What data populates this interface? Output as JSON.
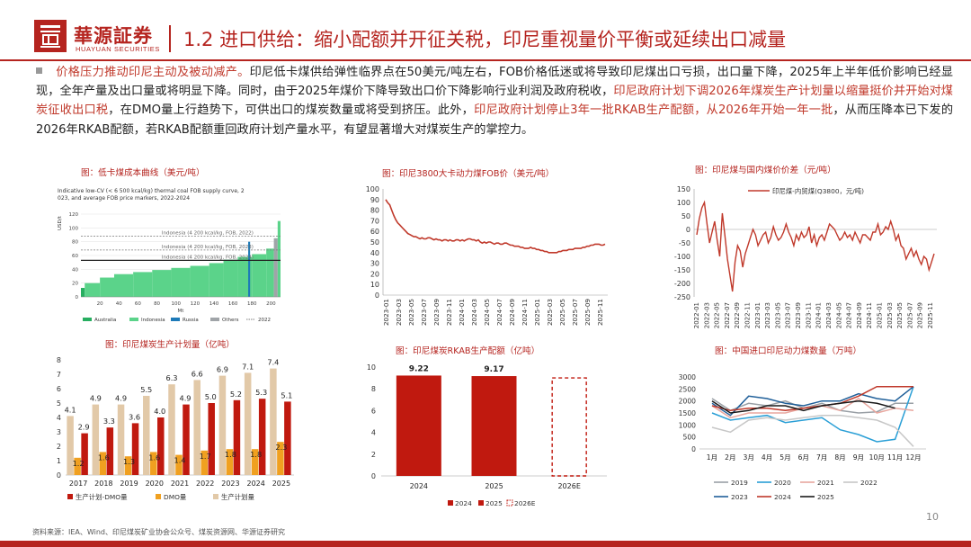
{
  "header": {
    "brand_cn": "華源証券",
    "brand_en": "HUAYUAN SECURITIES",
    "title": "1.2 进口供给：缩小配额并开征关税，印尼重视量价平衡或延续出口减量"
  },
  "paragraph": {
    "s1": "价格压力推动印尼主动及被动减产。",
    "s2": "印尼低卡煤供给弹性临界点在50美元/吨左右，FOB价格低迷或将导致印尼煤出口亏损，出口量下降，2025年上半年低价影响已经显现，全年产量及出口量或将明显下降。同时，由于2025年煤价下降导致出口价下降影响行业利润及政府税收，",
    "s3": "印尼政府计划下调2026年煤炭生产计划量以缩量挺价并开始对煤炭征收出口税",
    "s4": "，在DMO量上行趋势下，可供出口的煤炭数量或将受到挤压。此外，",
    "s5": "印尼政府计划停止3年一批RKAB生产配额，从2026年开始一年一批",
    "s6": "，从而压降本已下发的2026年RKAB配额，若RKAB配额重回政府计划产量水平，有望显著增大对煤炭生产的掌控力。"
  },
  "panels": {
    "p1_title": "图：低卡煤成本曲线（美元/吨）",
    "p2_title": "图：印尼3800大卡动力煤FOB价（美元/吨）",
    "p3_title": "图：印尼煤与国内煤价价差（元/吨）",
    "p4_title": "图：印尼煤炭生产计划量（亿吨）",
    "p5_title": "图：印尼煤炭RKAB生产配额（亿吨）",
    "p6_title": "图：中国进口印尼动力煤数量（万吨）"
  },
  "colors": {
    "brand": "#b5241f",
    "bar_red": "#c0190f",
    "bar_orange": "#f0a020",
    "bar_tan": "#e2c9a8",
    "line_red": "#c0392b"
  },
  "footer": {
    "source": "资料来源：IEA、Wind、印尼煤炭矿业协会公众号、煤炭资源网、华源证券研究",
    "page": "10"
  },
  "chart_data": [
    {
      "type": "area",
      "title": "Indicative low-CV (< 6 500 kcal/kg) thermal coal FOB supply curve, 2023, and average FOB price markers, 2022-2024",
      "xlabel": "Mt",
      "ylabel": "USD/t",
      "xlim": [
        0,
        210
      ],
      "ylim": [
        0,
        120
      ],
      "x_ticks": [
        "20",
        "40",
        "60",
        "80",
        "100",
        "120",
        "140",
        "160",
        "180",
        "200"
      ],
      "y_ticks": [
        "0",
        "20",
        "40",
        "60",
        "80",
        "100",
        "120"
      ],
      "markers": [
        {
          "label": "Indonesia (4 200 kcal/kg, FOB, 2022)",
          "value": 88
        },
        {
          "label": "Indonesia (4 200 kcal/kg, FOB, 2023)",
          "value": 68
        },
        {
          "label": "Indonesia (4 200 kcal/kg, FOB, 2024)",
          "value": 53
        }
      ],
      "segments": [
        {
          "country": "Australia",
          "x0": 0,
          "x1": 4,
          "y": 13
        },
        {
          "country": "Indonesia",
          "x0": 4,
          "x1": 20,
          "y": 20
        },
        {
          "country": "Indonesia",
          "x0": 20,
          "x1": 35,
          "y": 28
        },
        {
          "country": "Indonesia",
          "x0": 35,
          "x1": 55,
          "y": 33
        },
        {
          "country": "Indonesia",
          "x0": 55,
          "x1": 75,
          "y": 36
        },
        {
          "country": "Indonesia",
          "x0": 75,
          "x1": 95,
          "y": 39
        },
        {
          "country": "Indonesia",
          "x0": 95,
          "x1": 115,
          "y": 42
        },
        {
          "country": "Indonesia",
          "x0": 115,
          "x1": 135,
          "y": 45
        },
        {
          "country": "Indonesia",
          "x0": 135,
          "x1": 150,
          "y": 49
        },
        {
          "country": "Indonesia",
          "x0": 150,
          "x1": 165,
          "y": 54
        },
        {
          "country": "Indonesia",
          "x0": 165,
          "x1": 180,
          "y": 58
        },
        {
          "country": "Indonesia",
          "x0": 180,
          "x1": 195,
          "y": 62
        },
        {
          "country": "Indonesia",
          "x0": 195,
          "x1": 203,
          "y": 70
        },
        {
          "country": "Russia",
          "x0": 176,
          "x1": 178,
          "y": 80
        },
        {
          "country": "Others",
          "x0": 203,
          "x1": 207,
          "y": 85
        },
        {
          "country": "Indonesia",
          "x0": 207,
          "x1": 210,
          "y": 110
        }
      ],
      "legend": [
        "Australia",
        "Indonesia",
        "Russia",
        "Others",
        "2022"
      ]
    },
    {
      "type": "line",
      "title": "印尼3800大卡动力煤FOB价（美元/吨）",
      "ylim": [
        0,
        100
      ],
      "y_ticks": [
        "0",
        "10",
        "20",
        "30",
        "40",
        "50",
        "60",
        "70",
        "80",
        "90",
        "100"
      ],
      "x_ticks": [
        "2023-01",
        "2023-03",
        "2023-05",
        "2023-07",
        "2023-09",
        "2023-11",
        "2024-01",
        "2024-03",
        "2024-05",
        "2024-07",
        "2024-09",
        "2024-11",
        "2025-01",
        "2025-03",
        "2025-05",
        "2025-07",
        "2025-09",
        "2025-11"
      ],
      "values": [
        90,
        87,
        85,
        80,
        75,
        71,
        68,
        66,
        64,
        62,
        60,
        58,
        57,
        56,
        55,
        55,
        54,
        53,
        54,
        53,
        53,
        54,
        54,
        53,
        52,
        53,
        52,
        52,
        51,
        52,
        52,
        51,
        52,
        51,
        51,
        52,
        52,
        51,
        52,
        51,
        52,
        53,
        53,
        52,
        52,
        51,
        52,
        50,
        49,
        50,
        49,
        50,
        50,
        49,
        48,
        49,
        49,
        48,
        48,
        49,
        49,
        48,
        47,
        47,
        46,
        46,
        46,
        45,
        45,
        44,
        44,
        44,
        45,
        44,
        44,
        43,
        43,
        42,
        42,
        41,
        41,
        40,
        40,
        40,
        40,
        40,
        41,
        41,
        42,
        42,
        42,
        43,
        43,
        43,
        44,
        44,
        44,
        44,
        45,
        45,
        46,
        46,
        47,
        47,
        48,
        48,
        48,
        47,
        47,
        48
      ]
    },
    {
      "type": "line",
      "title": "印尼煤与国内煤价价差（元/吨）",
      "series_name": "印尼煤-内贸煤(Q3800，元/吨)",
      "ylim": [
        -250,
        150
      ],
      "y_ticks": [
        "150",
        "100",
        "50",
        "0",
        "-50",
        "-100",
        "-150",
        "-200",
        "-250"
      ],
      "x_ticks": [
        "2022-01",
        "2022-03",
        "2022-05",
        "2022-07",
        "2022-09",
        "2022-11",
        "2023-01",
        "2023-03",
        "2023-05",
        "2023-07",
        "2023-09",
        "2023-11",
        "2024-01",
        "2024-03",
        "2024-05",
        "2024-07",
        "2024-09",
        "2024-11",
        "2025-01",
        "2025-03",
        "2025-05",
        "2025-07",
        "2025-09",
        "2025-11"
      ],
      "values": [
        -20,
        40,
        80,
        100,
        20,
        -50,
        -10,
        30,
        -40,
        -100,
        60,
        -20,
        -110,
        -170,
        -230,
        -120,
        -60,
        -80,
        -140,
        -90,
        -60,
        -30,
        0,
        -20,
        -60,
        -40,
        -20,
        -10,
        -50,
        -30,
        10,
        -20,
        -40,
        -30,
        -10,
        20,
        -10,
        -30,
        -60,
        -20,
        -40,
        -10,
        -30,
        -20,
        10,
        -50,
        -20,
        -60,
        -30,
        -20,
        -40,
        -10,
        20,
        10,
        0,
        -20,
        -40,
        -30,
        -10,
        -30,
        -20,
        -40,
        -10,
        -30,
        -50,
        -20,
        -20,
        -30,
        -40,
        -10,
        -10,
        20,
        -20,
        -10,
        10,
        0,
        30,
        0,
        -40,
        -20,
        -60,
        -70,
        -110,
        -90,
        -70,
        -100,
        -80,
        -110,
        -130,
        -100,
        -110,
        -150,
        -120,
        -90
      ]
    },
    {
      "type": "bar",
      "title": "印尼煤炭生产计划量（亿吨）",
      "categories": [
        "2017",
        "2018",
        "2019",
        "2020",
        "2021",
        "2022",
        "2023",
        "2024",
        "2025"
      ],
      "ylim": [
        0,
        8
      ],
      "y_ticks": [
        "0",
        "1",
        "2",
        "3",
        "4",
        "5",
        "6",
        "7",
        "8"
      ],
      "series": [
        {
          "name": "生产计划-DMO量",
          "values": [
            2.9,
            3.3,
            3.6,
            4.0,
            4.9,
            5.0,
            5.2,
            5.3,
            5.1
          ],
          "color": "#c0190f"
        },
        {
          "name": "DMO量",
          "values": [
            1.2,
            1.6,
            1.3,
            1.6,
            1.4,
            1.7,
            1.8,
            1.8,
            2.3
          ],
          "color": "#f0a020"
        },
        {
          "name": "生产计划量",
          "values": [
            4.1,
            4.9,
            4.9,
            5.5,
            6.3,
            6.6,
            6.9,
            7.1,
            7.4
          ],
          "color": "#e2c9a8"
        }
      ]
    },
    {
      "type": "bar",
      "title": "印尼煤炭RKAB生产配额（亿吨）",
      "categories": [
        "2024",
        "2025",
        "2026E"
      ],
      "values": [
        9.22,
        9.17,
        null
      ],
      "labels": [
        "9.22",
        "9.17",
        ""
      ],
      "ylim": [
        0,
        10
      ],
      "y_ticks": [
        "0",
        "2",
        "4",
        "6",
        "8",
        "10"
      ],
      "legend": [
        "2024",
        "2025",
        "2026E"
      ]
    },
    {
      "type": "line",
      "title": "中国进口印尼动力煤数量（万吨）",
      "categories": [
        "1月",
        "2月",
        "3月",
        "4月",
        "5月",
        "6月",
        "7月",
        "8月",
        "9月",
        "10月",
        "11月",
        "12月"
      ],
      "ylim": [
        0,
        3000
      ],
      "y_ticks": [
        "0",
        "500",
        "1000",
        "1500",
        "2000",
        "2500",
        "3000"
      ],
      "series": [
        {
          "name": "2019",
          "values": [
            2100,
            1600,
            1900,
            1800,
            2000,
            1700,
            1900,
            1600,
            1500,
            1550,
            1900,
            1900
          ],
          "color": "#9aa0a6"
        },
        {
          "name": "2020",
          "values": [
            1500,
            1200,
            1300,
            1400,
            1100,
            1200,
            1300,
            800,
            600,
            300,
            400,
            2600
          ],
          "color": "#2a9fd6"
        },
        {
          "name": "2021",
          "values": [
            1800,
            1300,
            1500,
            1500,
            1500,
            1700,
            1800,
            1600,
            2100,
            1500,
            1700,
            1600
          ],
          "color": "#e8a79f"
        },
        {
          "name": "2022",
          "values": [
            900,
            700,
            1200,
            1300,
            1200,
            1300,
            1400,
            1400,
            1300,
            1200,
            900,
            100
          ],
          "color": "#c7c7c7"
        },
        {
          "name": "2023",
          "values": [
            1900,
            1400,
            2200,
            2100,
            1900,
            1800,
            2000,
            2000,
            2300,
            2100,
            2000,
            2600
          ],
          "color": "#1f5f99"
        },
        {
          "name": "2024",
          "values": [
            1800,
            1600,
            1700,
            1700,
            1600,
            1700,
            1800,
            1900,
            2200,
            2600,
            2600,
            2600
          ],
          "color": "#c0392b"
        },
        {
          "name": "2025",
          "values": [
            2000,
            1500,
            1600,
            1800,
            1800,
            1600,
            1800,
            1900,
            2000,
            1900,
            1700,
            null
          ],
          "color": "#1a1a1a"
        }
      ]
    }
  ]
}
